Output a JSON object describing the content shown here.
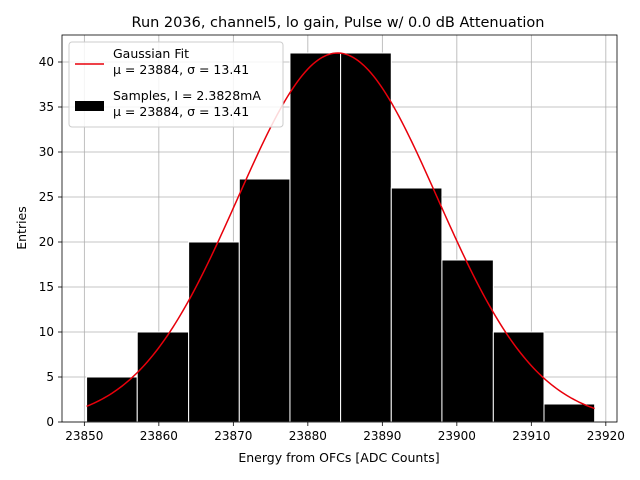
{
  "chart_data": {
    "type": "bar",
    "title": "Run 2036, channel5, lo gain, Pulse w/ 0.0 dB Attenuation",
    "xlabel": "Energy from OFCs [ADC Counts]",
    "ylabel": "Entries",
    "xlim": [
      23847,
      23921.5
    ],
    "ylim": [
      0,
      43
    ],
    "grid": true,
    "legend_position": "top-left",
    "x_ticks": [
      23850,
      23860,
      23870,
      23880,
      23890,
      23900,
      23910,
      23920
    ],
    "x_tick_labels": [
      "23850",
      "23860",
      "23870",
      "23880",
      "23890",
      "23900",
      "23910",
      "23920"
    ],
    "y_ticks": [
      0,
      5,
      10,
      15,
      20,
      25,
      30,
      35,
      40
    ],
    "y_tick_labels": [
      "0",
      "5",
      "10",
      "15",
      "20",
      "25",
      "30",
      "35",
      "40"
    ],
    "bin_edges": [
      23850.3,
      23857.1,
      23864.0,
      23870.8,
      23877.6,
      23884.4,
      23891.2,
      23898.0,
      23904.9,
      23911.7,
      23918.5
    ],
    "values": [
      5,
      10,
      20,
      27,
      41,
      41,
      26,
      18,
      10,
      2
    ],
    "fit": {
      "mu": 23884,
      "sigma": 13.41,
      "amplitude": 41,
      "x_range": [
        23850.3,
        23918.5
      ]
    },
    "series": [
      {
        "name": "Gaussian Fit",
        "legend_line2": "μ = 23884, σ = 13.41",
        "color": "#e8000b",
        "kind": "line"
      },
      {
        "name": "Samples, I = 2.3828mA",
        "legend_line2": "μ = 23884, σ = 13.41",
        "color": "#000000",
        "kind": "bar"
      }
    ]
  }
}
